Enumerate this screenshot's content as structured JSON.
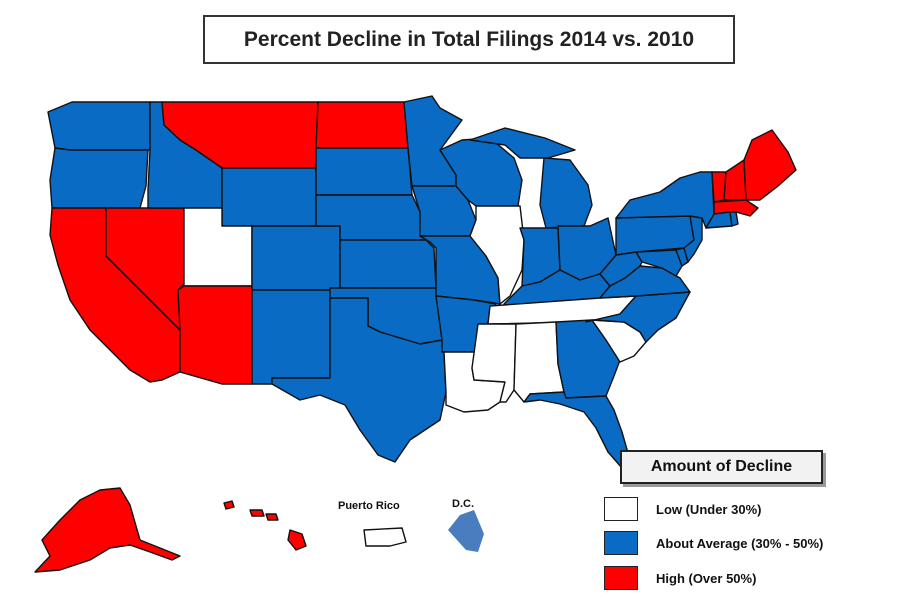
{
  "title": "Percent Decline in Total Filings 2014 vs. 2010",
  "colors": {
    "low": "#ffffff",
    "average": "#0a6bc4",
    "high": "#ff0000",
    "dc": "#4a7dc0"
  },
  "labels": {
    "puerto_rico": "Puerto Rico",
    "dc": "D.C."
  },
  "legend": {
    "title": "Amount of Decline",
    "items": [
      {
        "key": "low",
        "label": "Low (Under 30%)"
      },
      {
        "key": "average",
        "label": "About Average (30% - 50%)"
      },
      {
        "key": "high",
        "label": "High (Over 50%)"
      }
    ]
  },
  "regions": [
    {
      "name": "Washington",
      "category": "average"
    },
    {
      "name": "Oregon",
      "category": "average"
    },
    {
      "name": "California",
      "category": "high"
    },
    {
      "name": "Nevada",
      "category": "high"
    },
    {
      "name": "Idaho",
      "category": "average"
    },
    {
      "name": "Montana",
      "category": "high"
    },
    {
      "name": "Wyoming",
      "category": "average"
    },
    {
      "name": "Utah",
      "category": "low"
    },
    {
      "name": "Arizona",
      "category": "high"
    },
    {
      "name": "Colorado",
      "category": "average"
    },
    {
      "name": "New Mexico",
      "category": "average"
    },
    {
      "name": "North Dakota",
      "category": "high"
    },
    {
      "name": "South Dakota",
      "category": "average"
    },
    {
      "name": "Nebraska",
      "category": "average"
    },
    {
      "name": "Kansas",
      "category": "average"
    },
    {
      "name": "Oklahoma",
      "category": "average"
    },
    {
      "name": "Texas",
      "category": "average"
    },
    {
      "name": "Minnesota",
      "category": "average"
    },
    {
      "name": "Iowa",
      "category": "average"
    },
    {
      "name": "Missouri",
      "category": "average"
    },
    {
      "name": "Arkansas",
      "category": "average"
    },
    {
      "name": "Louisiana",
      "category": "low"
    },
    {
      "name": "Wisconsin",
      "category": "average"
    },
    {
      "name": "Illinois",
      "category": "low"
    },
    {
      "name": "Michigan",
      "category": "average"
    },
    {
      "name": "Indiana",
      "category": "average"
    },
    {
      "name": "Ohio",
      "category": "average"
    },
    {
      "name": "Kentucky",
      "category": "average"
    },
    {
      "name": "Tennessee",
      "category": "low"
    },
    {
      "name": "Mississippi",
      "category": "low"
    },
    {
      "name": "Alabama",
      "category": "low"
    },
    {
      "name": "Georgia",
      "category": "average"
    },
    {
      "name": "Florida",
      "category": "average"
    },
    {
      "name": "South Carolina",
      "category": "low"
    },
    {
      "name": "North Carolina",
      "category": "average"
    },
    {
      "name": "Virginia",
      "category": "average"
    },
    {
      "name": "West Virginia",
      "category": "average"
    },
    {
      "name": "Maryland",
      "category": "average"
    },
    {
      "name": "Delaware",
      "category": "average"
    },
    {
      "name": "Pennsylvania",
      "category": "average"
    },
    {
      "name": "New Jersey",
      "category": "average"
    },
    {
      "name": "New York",
      "category": "average"
    },
    {
      "name": "Vermont",
      "category": "high"
    },
    {
      "name": "New Hampshire",
      "category": "high"
    },
    {
      "name": "Maine",
      "category": "high"
    },
    {
      "name": "Massachusetts",
      "category": "high"
    },
    {
      "name": "Connecticut",
      "category": "average"
    },
    {
      "name": "Rhode Island",
      "category": "average"
    },
    {
      "name": "Alaska",
      "category": "high"
    },
    {
      "name": "Hawaii",
      "category": "high"
    },
    {
      "name": "Puerto Rico",
      "category": "low"
    },
    {
      "name": "District of Columbia",
      "category": "dc"
    }
  ]
}
